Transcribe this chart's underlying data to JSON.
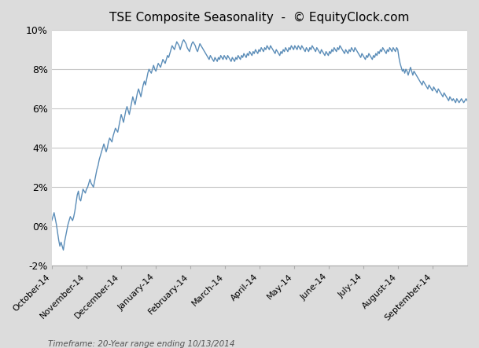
{
  "title": "TSE Composite Seasonality  -  © EquityClock.com",
  "footnote": "Timeframe: 20-Year range ending 10/13/2014",
  "line_color": "#5B8DB8",
  "background_color": "#DCDCDC",
  "plot_bg_color": "#FFFFFF",
  "grid_color": "#C8C8C8",
  "ylim": [
    -0.02,
    0.1
  ],
  "yticks": [
    -0.02,
    0.0,
    0.02,
    0.04,
    0.06,
    0.08,
    0.1
  ],
  "ytick_labels": [
    "-2%",
    "0%",
    "2%",
    "4%",
    "6%",
    "8%",
    "10%"
  ],
  "x_month_labels": [
    "October-14",
    "November-14",
    "December-14",
    "January-14",
    "February-14",
    "March-14",
    "April-14",
    "May-14",
    "June-14",
    "July-14",
    "August-14",
    "September-14"
  ],
  "seasonality_values": [
    0.003,
    0.005,
    0.007,
    0.004,
    0.001,
    -0.003,
    -0.007,
    -0.01,
    -0.008,
    -0.01,
    -0.012,
    -0.008,
    -0.005,
    -0.002,
    0.001,
    0.003,
    0.005,
    0.004,
    0.003,
    0.005,
    0.008,
    0.012,
    0.016,
    0.018,
    0.014,
    0.013,
    0.016,
    0.019,
    0.018,
    0.017,
    0.019,
    0.02,
    0.022,
    0.024,
    0.022,
    0.021,
    0.02,
    0.023,
    0.026,
    0.029,
    0.031,
    0.034,
    0.036,
    0.038,
    0.04,
    0.042,
    0.04,
    0.038,
    0.04,
    0.043,
    0.045,
    0.044,
    0.043,
    0.046,
    0.048,
    0.05,
    0.049,
    0.048,
    0.051,
    0.054,
    0.057,
    0.055,
    0.053,
    0.056,
    0.059,
    0.061,
    0.059,
    0.057,
    0.06,
    0.063,
    0.066,
    0.064,
    0.062,
    0.065,
    0.068,
    0.07,
    0.068,
    0.066,
    0.069,
    0.072,
    0.074,
    0.072,
    0.075,
    0.078,
    0.08,
    0.079,
    0.078,
    0.08,
    0.082,
    0.08,
    0.079,
    0.081,
    0.083,
    0.082,
    0.081,
    0.083,
    0.085,
    0.084,
    0.083,
    0.085,
    0.087,
    0.086,
    0.088,
    0.09,
    0.092,
    0.091,
    0.09,
    0.092,
    0.094,
    0.093,
    0.092,
    0.09,
    0.092,
    0.094,
    0.095,
    0.094,
    0.093,
    0.091,
    0.09,
    0.089,
    0.091,
    0.093,
    0.094,
    0.093,
    0.092,
    0.09,
    0.089,
    0.091,
    0.093,
    0.092,
    0.091,
    0.09,
    0.089,
    0.088,
    0.087,
    0.086,
    0.085,
    0.087,
    0.086,
    0.085,
    0.084,
    0.086,
    0.085,
    0.084,
    0.086,
    0.085,
    0.087,
    0.086,
    0.085,
    0.087,
    0.086,
    0.085,
    0.087,
    0.086,
    0.085,
    0.084,
    0.086,
    0.085,
    0.084,
    0.086,
    0.085,
    0.087,
    0.086,
    0.085,
    0.087,
    0.086,
    0.088,
    0.087,
    0.086,
    0.088,
    0.087,
    0.089,
    0.088,
    0.087,
    0.089,
    0.088,
    0.09,
    0.089,
    0.088,
    0.09,
    0.089,
    0.091,
    0.09,
    0.089,
    0.091,
    0.09,
    0.092,
    0.091,
    0.09,
    0.092,
    0.091,
    0.09,
    0.089,
    0.088,
    0.09,
    0.089,
    0.088,
    0.087,
    0.089,
    0.088,
    0.09,
    0.089,
    0.091,
    0.09,
    0.089,
    0.091,
    0.09,
    0.092,
    0.091,
    0.09,
    0.092,
    0.091,
    0.09,
    0.092,
    0.091,
    0.09,
    0.092,
    0.091,
    0.09,
    0.089,
    0.091,
    0.09,
    0.089,
    0.091,
    0.09,
    0.092,
    0.091,
    0.09,
    0.089,
    0.091,
    0.09,
    0.089,
    0.088,
    0.09,
    0.089,
    0.088,
    0.087,
    0.089,
    0.088,
    0.087,
    0.089,
    0.088,
    0.09,
    0.089,
    0.091,
    0.09,
    0.089,
    0.091,
    0.09,
    0.092,
    0.091,
    0.09,
    0.089,
    0.088,
    0.09,
    0.089,
    0.088,
    0.09,
    0.089,
    0.091,
    0.09,
    0.089,
    0.091,
    0.09,
    0.089,
    0.088,
    0.087,
    0.086,
    0.088,
    0.087,
    0.086,
    0.085,
    0.087,
    0.086,
    0.088,
    0.087,
    0.086,
    0.085,
    0.087,
    0.086,
    0.088,
    0.087,
    0.089,
    0.088,
    0.09,
    0.089,
    0.091,
    0.09,
    0.089,
    0.088,
    0.09,
    0.089,
    0.091,
    0.09,
    0.089,
    0.091,
    0.09,
    0.089,
    0.091,
    0.09,
    0.086,
    0.083,
    0.081,
    0.079,
    0.08,
    0.078,
    0.08,
    0.079,
    0.077,
    0.079,
    0.081,
    0.079,
    0.077,
    0.079,
    0.078,
    0.077,
    0.076,
    0.075,
    0.074,
    0.073,
    0.072,
    0.074,
    0.073,
    0.072,
    0.071,
    0.07,
    0.072,
    0.071,
    0.07,
    0.069,
    0.071,
    0.07,
    0.069,
    0.068,
    0.07,
    0.069,
    0.068,
    0.067,
    0.066,
    0.068,
    0.067,
    0.066,
    0.065,
    0.064,
    0.066,
    0.065,
    0.064,
    0.065,
    0.064,
    0.063,
    0.065,
    0.064,
    0.063,
    0.064,
    0.065,
    0.064,
    0.063,
    0.064,
    0.065,
    0.064
  ]
}
